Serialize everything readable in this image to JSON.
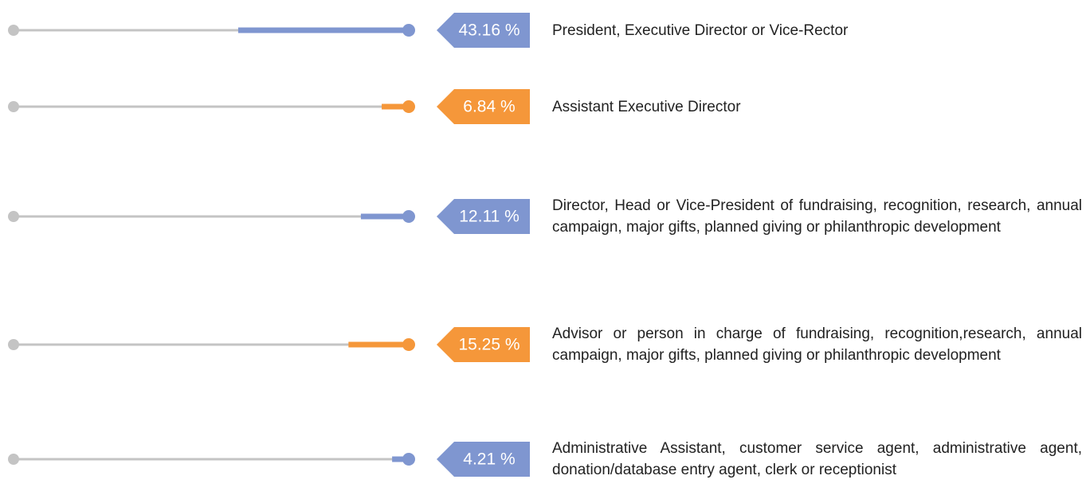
{
  "chart_data": {
    "type": "bar",
    "categories": [
      "President, Executive Director or Vice-Rector",
      "Assistant Executive Director",
      "Director, Head or Vice-President of fundraising, recognition, research, annual campaign, major gifts, planned giving or philanthropic development",
      "Advisor or person in charge of fundraising, recognition,research, annual campaign, major gifts, planned giving or philanthropic development",
      "Administrative Assistant, customer service agent, administrative agent, donation/database entry agent, clerk or receptionist"
    ],
    "values": [
      43.16,
      6.84,
      12.11,
      15.25,
      4.21
    ],
    "value_labels": [
      "43.16 %",
      "6.84 %",
      "12.11 %",
      "15.25 %",
      "4.21 %"
    ],
    "colors": [
      "#7f96d0",
      "#f5973a",
      "#7f96d0",
      "#f5973a",
      "#7f96d0"
    ],
    "xlim": [
      0,
      100
    ]
  }
}
